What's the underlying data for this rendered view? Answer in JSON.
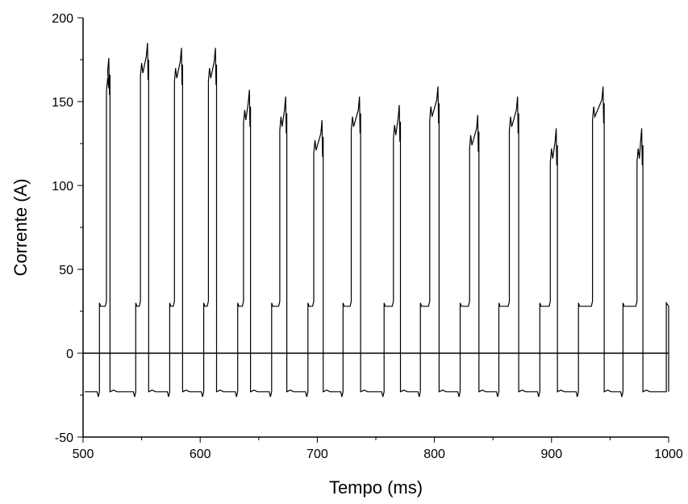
{
  "chart_data": {
    "type": "line",
    "title": "",
    "xlabel": "Tempo (ms)",
    "ylabel": "Corrente (A)",
    "xlim": [
      500,
      1000
    ],
    "ylim": [
      -50,
      200
    ],
    "x_ticks": [
      500,
      600,
      700,
      800,
      900,
      1000
    ],
    "y_ticks": [
      -50,
      0,
      50,
      100,
      150,
      200
    ],
    "grid": false,
    "legend": "none",
    "reference_line": {
      "y": 0
    },
    "line_color": "#000000",
    "background_level": 30,
    "negative_level": -23,
    "pulses": [
      {
        "rise": 514,
        "high": 520,
        "fall": 523,
        "peak": 176
      },
      {
        "rise": 545,
        "high": 549,
        "fall": 556,
        "peak": 185
      },
      {
        "rise": 574,
        "high": 578,
        "fall": 585,
        "peak": 182
      },
      {
        "rise": 603,
        "high": 607,
        "fall": 614,
        "peak": 182
      },
      {
        "rise": 632,
        "high": 637,
        "fall": 643,
        "peak": 157
      },
      {
        "rise": 661,
        "high": 668,
        "fall": 674,
        "peak": 153
      },
      {
        "rise": 692,
        "high": 697,
        "fall": 705,
        "peak": 139
      },
      {
        "rise": 722,
        "high": 729,
        "fall": 737,
        "peak": 153
      },
      {
        "rise": 757,
        "high": 765,
        "fall": 771,
        "peak": 148
      },
      {
        "rise": 788,
        "high": 796,
        "fall": 804,
        "peak": 159
      },
      {
        "rise": 822,
        "high": 830,
        "fall": 838,
        "peak": 142
      },
      {
        "rise": 855,
        "high": 864,
        "fall": 872,
        "peak": 153
      },
      {
        "rise": 890,
        "high": 899,
        "fall": 905,
        "peak": 134
      },
      {
        "rise": 923,
        "high": 935,
        "fall": 945,
        "peak": 159
      },
      {
        "rise": 961,
        "high": 973,
        "fall": 978,
        "peak": 134
      }
    ],
    "end_rise": 998
  }
}
